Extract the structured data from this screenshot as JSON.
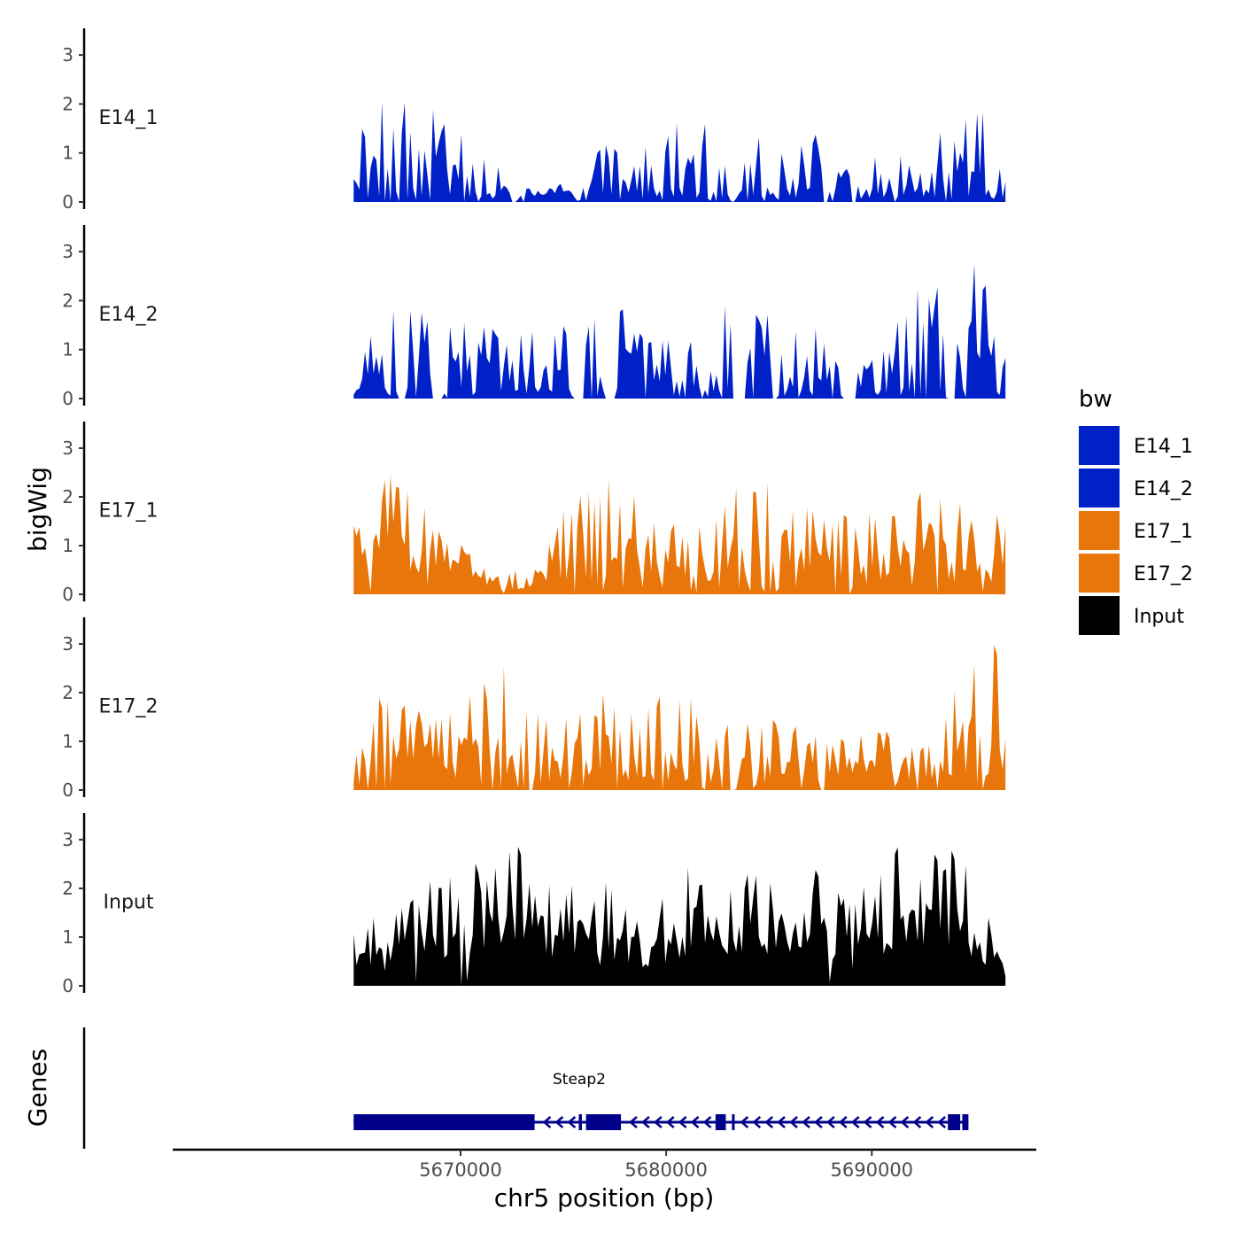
{
  "chart_data": {
    "type": "area",
    "title": "",
    "ylabel": "bigWig",
    "xlabel": "chr5 position (bp)",
    "xlim": [
      5656000,
      5698000
    ],
    "data_x_range": [
      5664800,
      5696500
    ],
    "x_ticks": [
      5670000,
      5680000,
      5690000
    ],
    "x_tick_labels": [
      "5670000",
      "5680000",
      "5690000"
    ],
    "ylim": [
      0,
      3.4
    ],
    "y_ticks": [
      0,
      1,
      2,
      3
    ],
    "y_tick_labels": [
      "0",
      "1",
      "2",
      "3"
    ],
    "colors": {
      "E14": "#0020C8",
      "E17": "#E8760A",
      "Input": "#000000",
      "gene": "#00008B"
    },
    "legend": {
      "title": "bw",
      "position": "right",
      "entries": [
        {
          "label": "E14_1",
          "color": "#0020C8"
        },
        {
          "label": "E14_2",
          "color": "#0020C8"
        },
        {
          "label": "E17_1",
          "color": "#E8760A"
        },
        {
          "label": "E17_2",
          "color": "#E8760A"
        },
        {
          "label": "Input",
          "color": "#000000"
        }
      ]
    },
    "series": [
      {
        "name": "E14_1",
        "color": "#0020C8",
        "seed": 11,
        "peak": 2.65,
        "base": 0.3,
        "density": 0.55,
        "gaps": [
          [
            5672400,
            5672700
          ],
          [
            5672950,
            5673200
          ],
          [
            5683200,
            5683400
          ],
          [
            5687650,
            5687900
          ],
          [
            5689000,
            5689300
          ],
          [
            5691050,
            5691200
          ]
        ],
        "x": [
          5664800,
          5667000,
          5673000,
          5676000,
          5679700,
          5681500,
          5685000,
          5688000,
          5690500,
          5693500,
          5695200,
          5696500
        ],
        "y": [
          1.3,
          2.6,
          0.3,
          1.0,
          1.6,
          1.8,
          1.2,
          1.5,
          0.9,
          1.8,
          2.2,
          0.8
        ]
      },
      {
        "name": "E14_2",
        "color": "#0020C8",
        "seed": 23,
        "peak": 2.8,
        "base": 0.25,
        "density": 0.6,
        "gaps": [
          [
            5666900,
            5667300
          ],
          [
            5668600,
            5669200
          ],
          [
            5675500,
            5676000
          ],
          [
            5676300,
            5676500
          ],
          [
            5677000,
            5677500
          ],
          [
            5683200,
            5683900
          ],
          [
            5684100,
            5684300
          ],
          [
            5685100,
            5685400
          ],
          [
            5688600,
            5689300
          ],
          [
            5693700,
            5694100
          ]
        ],
        "x": [
          5664800,
          5666300,
          5670000,
          5673000,
          5677700,
          5680000,
          5682800,
          5686300,
          5689800,
          5692400,
          5693900,
          5695700,
          5696500
        ],
        "y": [
          0.2,
          2.2,
          1.5,
          1.3,
          1.9,
          1.2,
          2.0,
          1.4,
          1.4,
          2.5,
          2.5,
          2.7,
          0.8
        ]
      },
      {
        "name": "E17_1",
        "color": "#E8760A",
        "seed": 37,
        "peak": 2.45,
        "base": 0.5,
        "density": 0.75,
        "gaps": [],
        "x": [
          5664800,
          5666500,
          5670000,
          5673000,
          5675700,
          5678000,
          5681000,
          5683000,
          5685000,
          5688000,
          5691000,
          5693000,
          5696500
        ],
        "y": [
          1.5,
          2.4,
          1.0,
          0.2,
          2.2,
          2.3,
          1.2,
          2.1,
          2.3,
          1.6,
          1.6,
          2.4,
          1.5
        ]
      },
      {
        "name": "E17_2",
        "color": "#E8760A",
        "seed": 53,
        "peak": 3.3,
        "base": 0.45,
        "density": 0.7,
        "gaps": [
          [
            5671500,
            5671650
          ],
          [
            5673300,
            5673550
          ],
          [
            5683100,
            5683400
          ],
          [
            5687500,
            5687700
          ],
          [
            5692100,
            5692300
          ]
        ],
        "x": [
          5664800,
          5666000,
          5669000,
          5671950,
          5674600,
          5677100,
          5681000,
          5684500,
          5687700,
          5691200,
          5693700,
          5696000,
          5696500
        ],
        "y": [
          0.6,
          2.0,
          1.5,
          2.5,
          1.4,
          2.1,
          1.9,
          1.6,
          1.0,
          1.3,
          1.8,
          3.3,
          1.1
        ]
      },
      {
        "name": "Input",
        "color": "#000000",
        "seed": 71,
        "peak": 2.9,
        "base": 0.9,
        "density": 0.95,
        "gaps": [],
        "x": [
          5664800,
          5667000,
          5670500,
          5672500,
          5674500,
          5676800,
          5679000,
          5681500,
          5684000,
          5686800,
          5689000,
          5691700,
          5694500,
          5696500
        ],
        "y": [
          1.1,
          2.0,
          2.4,
          2.9,
          2.0,
          2.3,
          1.4,
          2.6,
          2.3,
          2.6,
          1.8,
          2.9,
          2.7,
          0.7
        ]
      }
    ],
    "genes_track": {
      "label": "Genes",
      "gene_name": "Steap2",
      "strand": "-",
      "start": 5664800,
      "end": 5694700,
      "exons": [
        [
          5664800,
          5673600
        ],
        [
          5675750,
          5675900
        ],
        [
          5676100,
          5677800
        ],
        [
          5682400,
          5682900
        ],
        [
          5683200,
          5683300
        ],
        [
          5693700,
          5694300
        ],
        [
          5694400,
          5694700
        ]
      ]
    }
  }
}
